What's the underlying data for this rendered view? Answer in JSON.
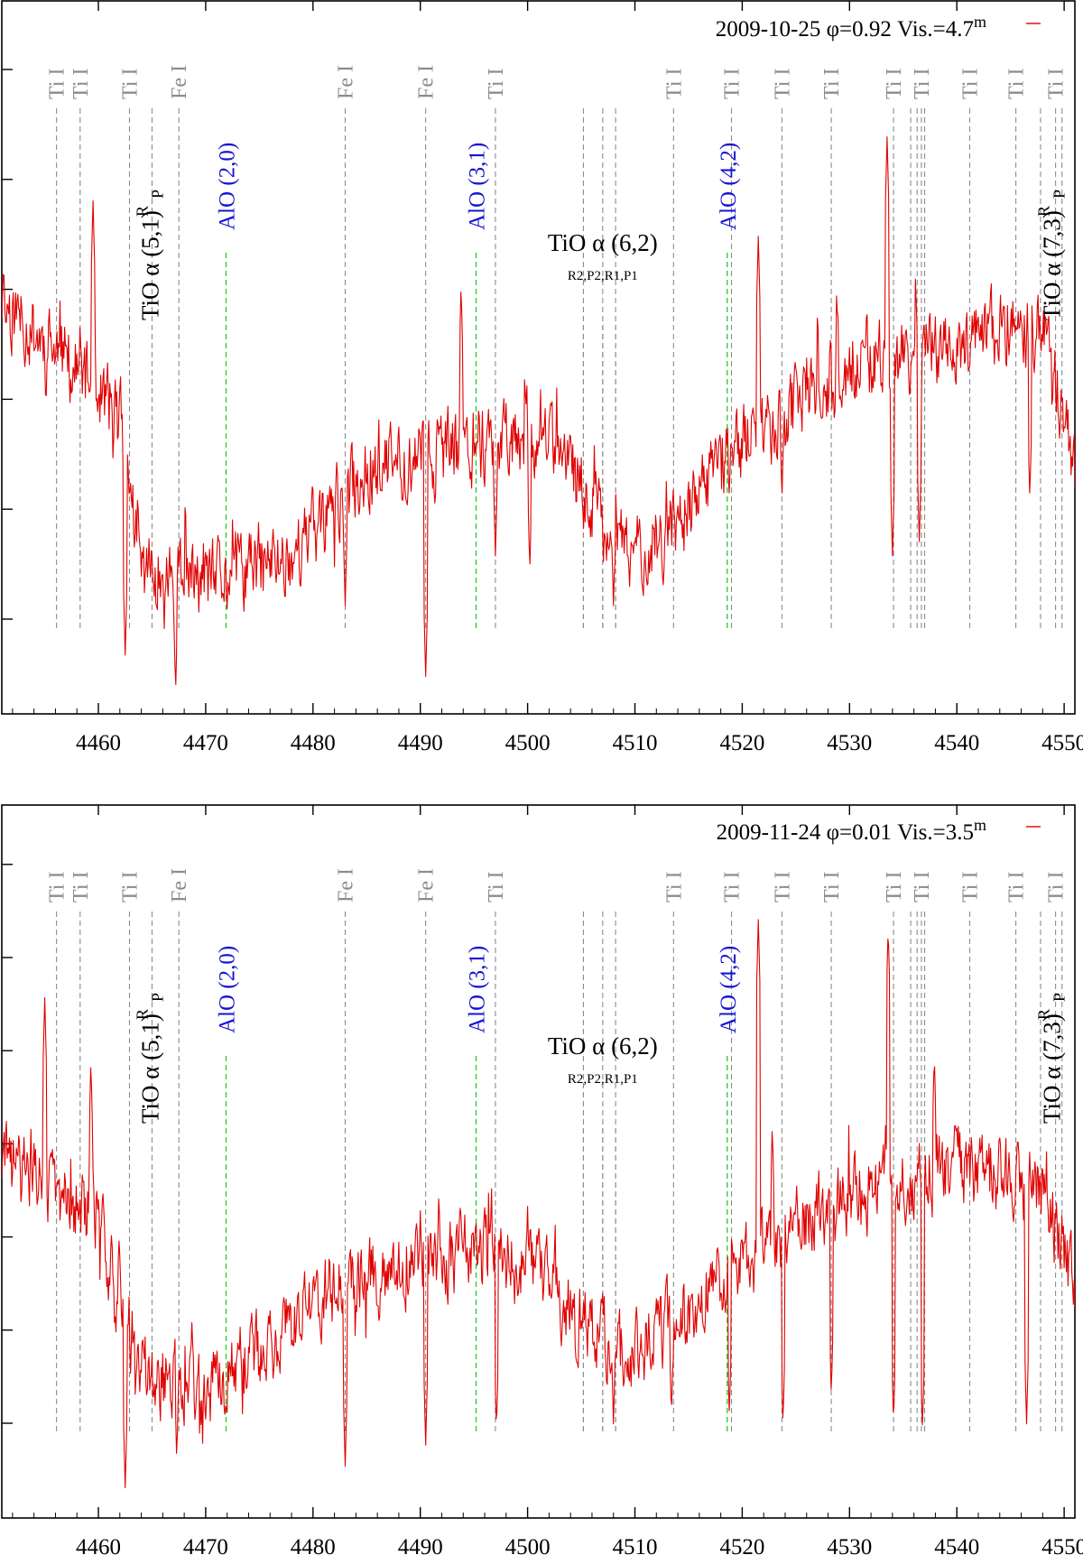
{
  "chart_data": [
    {
      "type": "line",
      "panel": "top",
      "xlim": [
        4451,
        4551
      ],
      "ylim": [
        0,
        1
      ],
      "xticks": [
        4460,
        4470,
        4480,
        4490,
        4500,
        4510,
        4520,
        4530,
        4540,
        4550
      ],
      "ytick_count": 6,
      "legend": {
        "date": "2009-10-25",
        "phase": "φ=0.92",
        "vis": "Vis.=4.7",
        "sup": "m"
      },
      "series_color": "#e00000",
      "seed": 11,
      "baseline": [
        [
          4451,
          0.58
        ],
        [
          4462,
          0.42
        ],
        [
          4464,
          0.2
        ],
        [
          4470,
          0.18
        ],
        [
          4478,
          0.22
        ],
        [
          4485,
          0.34
        ],
        [
          4495,
          0.38
        ],
        [
          4500,
          0.4
        ],
        [
          4505,
          0.32
        ],
        [
          4509,
          0.22
        ],
        [
          4514,
          0.26
        ],
        [
          4520,
          0.38
        ],
        [
          4530,
          0.48
        ],
        [
          4540,
          0.52
        ],
        [
          4548,
          0.54
        ],
        [
          4551,
          0.34
        ]
      ],
      "peaks": [
        [
          4455.0,
          0.48
        ],
        [
          4458.3,
          0.55
        ],
        [
          4459.5,
          0.72
        ],
        [
          4493.8,
          0.6
        ],
        [
          4496.3,
          0.3
        ],
        [
          4521.5,
          0.67
        ],
        [
          4522.8,
          0.4
        ],
        [
          4533.5,
          0.81
        ],
        [
          4537.8,
          0.5
        ],
        [
          4547.3,
          0.44
        ]
      ],
      "dips": [
        [
          4462.5,
          0.08
        ],
        [
          4467.2,
          0.03
        ],
        [
          4483.0,
          0.15
        ],
        [
          4490.5,
          0.05
        ],
        [
          4497.0,
          0.22
        ],
        [
          4500.2,
          0.2
        ],
        [
          4505.2,
          0.25
        ],
        [
          4508.0,
          0.15
        ],
        [
          4518.8,
          0.3
        ],
        [
          4523.7,
          0.3
        ],
        [
          4534.0,
          0.22
        ],
        [
          4536.5,
          0.24
        ],
        [
          4546.8,
          0.3
        ]
      ]
    },
    {
      "type": "line",
      "panel": "bottom",
      "xlim": [
        4451,
        4551
      ],
      "ylim": [
        0,
        1
      ],
      "xticks": [
        4460,
        4470,
        4480,
        4490,
        4500,
        4510,
        4520,
        4530,
        4540,
        4550
      ],
      "ytick_count": 7,
      "legend": {
        "date": "2009-11-24",
        "phase": "φ=0.01",
        "vis": "Vis.=3.5",
        "sup": "m"
      },
      "series_color": "#e00000",
      "seed": 29,
      "baseline": [
        [
          4451,
          0.5
        ],
        [
          4460,
          0.42
        ],
        [
          4464,
          0.2
        ],
        [
          4470,
          0.18
        ],
        [
          4476,
          0.24
        ],
        [
          4483,
          0.34
        ],
        [
          4495,
          0.37
        ],
        [
          4501,
          0.34
        ],
        [
          4506,
          0.26
        ],
        [
          4509,
          0.22
        ],
        [
          4514,
          0.28
        ],
        [
          4522,
          0.38
        ],
        [
          4532,
          0.46
        ],
        [
          4540,
          0.5
        ],
        [
          4548,
          0.46
        ],
        [
          4551,
          0.32
        ]
      ],
      "peaks": [
        [
          4455.0,
          0.73
        ],
        [
          4459.3,
          0.64
        ],
        [
          4462.0,
          0.27
        ],
        [
          4521.5,
          0.84
        ],
        [
          4522.8,
          0.55
        ],
        [
          4533.6,
          0.83
        ],
        [
          4537.9,
          0.65
        ],
        [
          4490.0,
          0.43
        ]
      ],
      "dips": [
        [
          4462.5,
          0.04
        ],
        [
          4467.3,
          0.08
        ],
        [
          4483.0,
          0.07
        ],
        [
          4490.5,
          0.1
        ],
        [
          4497.1,
          0.12
        ],
        [
          4508.0,
          0.13
        ],
        [
          4513.4,
          0.14
        ],
        [
          4518.8,
          0.14
        ],
        [
          4523.8,
          0.13
        ],
        [
          4528.3,
          0.17
        ],
        [
          4534.1,
          0.13
        ],
        [
          4536.8,
          0.12
        ],
        [
          4546.5,
          0.13
        ]
      ]
    }
  ],
  "annotations": {
    "gray_lines": [
      {
        "x": 4456.1,
        "label": "Ti I"
      },
      {
        "x": 4458.3,
        "label": "Ti I"
      },
      {
        "x": 4462.9,
        "label": "Ti I"
      },
      {
        "x": 4465.0,
        "label": ""
      },
      {
        "x": 4467.5,
        "label": "Fe I"
      },
      {
        "x": 4483.0,
        "label": "Fe I"
      },
      {
        "x": 4490.5,
        "label": "Fe I"
      },
      {
        "x": 4497.0,
        "label": "Ti I"
      },
      {
        "x": 4505.2,
        "label": ""
      },
      {
        "x": 4507.0,
        "label": ""
      },
      {
        "x": 4508.2,
        "label": ""
      },
      {
        "x": 4513.6,
        "label": "Ti I"
      },
      {
        "x": 4519.0,
        "label": "Ti I"
      },
      {
        "x": 4523.7,
        "label": "Ti I"
      },
      {
        "x": 4528.3,
        "label": "Ti I"
      },
      {
        "x": 4534.1,
        "label": "Ti I"
      },
      {
        "x": 4535.7,
        "label": ""
      },
      {
        "x": 4536.3,
        "label": ""
      },
      {
        "x": 4536.7,
        "label": "Ti I"
      },
      {
        "x": 4537.0,
        "label": ""
      },
      {
        "x": 4541.2,
        "label": "Ti I"
      },
      {
        "x": 4545.5,
        "label": "Ti I"
      },
      {
        "x": 4547.8,
        "label": ""
      },
      {
        "x": 4549.2,
        "label": "Ti I"
      },
      {
        "x": 4549.8,
        "label": ""
      }
    ],
    "alo": [
      {
        "x": 4471.9,
        "label": "AlO (2,0)"
      },
      {
        "x": 4495.2,
        "label": "AlO (3,1)"
      },
      {
        "x": 4518.6,
        "label": "AlO (4,2)"
      }
    ],
    "tio_51": {
      "main": "TiO α (5,1)",
      "r": "R",
      "p": "P"
    },
    "tio_73": {
      "main": "TiO α (7,3)",
      "r": "R",
      "p": "P"
    },
    "tio_62": {
      "main": "TiO α (6,2)",
      "sub": "R2,P2,R1,P1"
    }
  }
}
